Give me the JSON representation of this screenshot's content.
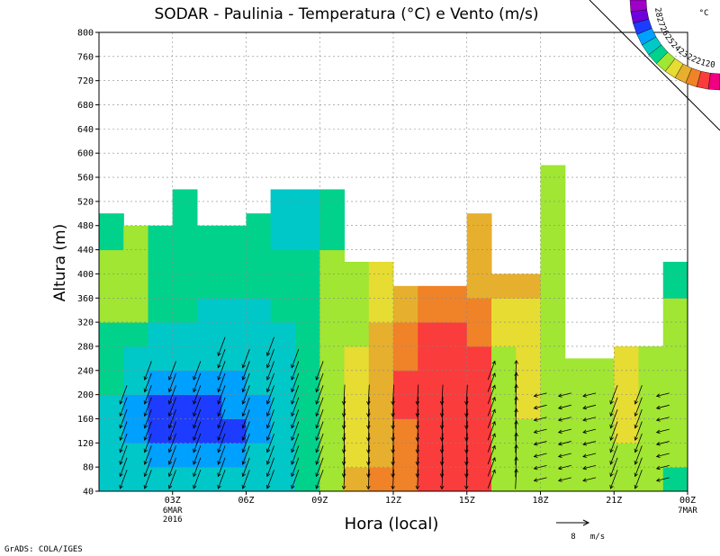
{
  "chart_data": {
    "type": "heatmap",
    "title": "SODAR - Paulinia - Temperatura (°C) e Vento (m/s)",
    "xlabel": "Hora (local)",
    "ylabel": "Altura (m)",
    "ylim": [
      40,
      800
    ],
    "y_ticks": [
      40,
      80,
      120,
      160,
      200,
      240,
      280,
      320,
      360,
      400,
      440,
      480,
      520,
      560,
      600,
      640,
      680,
      720,
      760,
      800
    ],
    "x_hours": [
      0,
      1,
      2,
      3,
      4,
      5,
      6,
      7,
      8,
      9,
      10,
      11,
      12,
      13,
      14,
      15,
      16,
      17,
      18,
      19,
      20,
      21,
      22,
      23
    ],
    "x_ticks": [
      {
        "hour": 3,
        "label": "03Z",
        "sub1": "6MAR",
        "sub2": "2016"
      },
      {
        "hour": 6,
        "label": "06Z"
      },
      {
        "hour": 9,
        "label": "09Z"
      },
      {
        "hour": 12,
        "label": "12Z"
      },
      {
        "hour": 15,
        "label": "15Z"
      },
      {
        "hour": 18,
        "label": "18Z"
      },
      {
        "hour": 21,
        "label": "21Z"
      },
      {
        "hour": 24,
        "label": "00Z",
        "sub1": "7MAR"
      }
    ],
    "levels": [
      20,
      21,
      22,
      23,
      24,
      25,
      26,
      27,
      28
    ],
    "level_colors": [
      "#a000c8",
      "#6e00dc",
      "#1e3cff",
      "#00a0ff",
      "#00c8c8",
      "#00d28c",
      "#a0e632",
      "#e6dc32",
      "#e6af2d",
      "#f08228",
      "#fa3c3c",
      "#f00082"
    ],
    "colorbar_labels": [
      "28",
      "27",
      "26",
      "25",
      "24",
      "23",
      "22",
      "21",
      "20"
    ],
    "colorbar_unit": "°C",
    "top_height_m": [
      500,
      480,
      480,
      540,
      480,
      480,
      500,
      540,
      540,
      540,
      420,
      420,
      380,
      380,
      380,
      500,
      400,
      400,
      580,
      260,
      260,
      280,
      280,
      420
    ],
    "temperature_columns": [
      [
        22,
        22,
        22,
        22,
        23,
        23,
        23,
        24,
        24,
        24,
        23
      ],
      [
        22,
        22,
        21,
        21,
        22,
        22,
        23,
        24,
        24,
        24,
        24
      ],
      [
        22,
        21,
        20,
        20,
        21,
        22,
        22,
        23,
        23,
        23,
        23
      ],
      [
        22,
        21,
        20,
        20,
        21,
        22,
        22,
        23,
        23,
        23,
        23
      ],
      [
        22,
        21,
        20,
        20,
        21,
        22,
        22,
        22,
        23,
        23,
        23
      ],
      [
        22,
        21,
        20,
        21,
        21,
        22,
        22,
        22,
        23,
        23,
        23
      ],
      [
        22,
        22,
        21,
        21,
        22,
        22,
        22,
        22,
        23,
        23,
        23
      ],
      [
        22,
        22,
        22,
        22,
        22,
        22,
        22,
        23,
        23,
        23,
        22
      ],
      [
        23,
        23,
        23,
        23,
        23,
        23,
        23,
        23,
        23,
        23,
        22
      ],
      [
        24,
        24,
        24,
        24,
        24,
        24,
        24,
        24,
        24,
        24,
        23
      ],
      [
        26,
        25,
        25,
        25,
        25,
        25,
        24,
        24,
        24,
        24,
        24
      ],
      [
        27,
        26,
        26,
        26,
        26,
        26,
        26,
        25,
        25,
        25,
        25
      ],
      [
        27,
        27,
        27,
        28,
        28,
        27,
        27,
        26,
        26,
        26,
        26
      ],
      [
        28,
        28,
        28,
        28,
        28,
        28,
        28,
        27,
        27,
        27,
        26
      ],
      [
        28,
        28,
        28,
        28,
        28,
        28,
        28,
        27,
        27,
        27,
        27
      ],
      [
        28,
        28,
        28,
        28,
        28,
        28,
        27,
        27,
        26,
        26,
        26
      ],
      [
        24,
        24,
        24,
        24,
        24,
        24,
        25,
        25,
        26,
        26,
        26
      ],
      [
        24,
        24,
        24,
        25,
        25,
        25,
        25,
        25,
        26,
        26,
        26
      ],
      [
        24,
        24,
        24,
        24,
        24,
        24,
        24,
        24,
        24,
        24,
        24
      ],
      [
        24,
        24,
        24,
        24,
        24,
        24,
        24,
        24,
        24,
        24,
        24
      ],
      [
        24,
        24,
        24,
        24,
        24,
        24,
        24,
        24,
        24,
        24,
        24
      ],
      [
        24,
        24,
        25,
        25,
        25,
        25,
        24,
        24,
        24,
        24,
        24
      ],
      [
        24,
        24,
        24,
        24,
        24,
        24,
        24,
        24,
        24,
        24,
        24
      ],
      [
        23,
        24,
        24,
        24,
        24,
        24,
        24,
        24,
        23,
        23,
        23
      ]
    ],
    "wind_columns": [
      {
        "hour": 1,
        "top": 200,
        "dir": "SW"
      },
      {
        "hour": 2,
        "top": 240,
        "dir": "SW"
      },
      {
        "hour": 3,
        "top": 240,
        "dir": "SW"
      },
      {
        "hour": 4,
        "top": 240,
        "dir": "SW"
      },
      {
        "hour": 5,
        "top": 280,
        "dir": "SW"
      },
      {
        "hour": 6,
        "top": 260,
        "dir": "SW"
      },
      {
        "hour": 7,
        "top": 280,
        "dir": "SW"
      },
      {
        "hour": 8,
        "top": 260,
        "dir": "SW"
      },
      {
        "hour": 9,
        "top": 240,
        "dir": "SW"
      },
      {
        "hour": 10,
        "top": 200,
        "dir": "S"
      },
      {
        "hour": 11,
        "top": 200,
        "dir": "S"
      },
      {
        "hour": 12,
        "top": 200,
        "dir": "S"
      },
      {
        "hour": 13,
        "top": 200,
        "dir": "S"
      },
      {
        "hour": 14,
        "top": 200,
        "dir": "S"
      },
      {
        "hour": 15,
        "top": 200,
        "dir": "S"
      },
      {
        "hour": 16,
        "top": 240,
        "dir": "NE"
      },
      {
        "hour": 17,
        "top": 240,
        "dir": "N"
      },
      {
        "hour": 18,
        "top": 200,
        "dir": "W"
      },
      {
        "hour": 19,
        "top": 200,
        "dir": "W"
      },
      {
        "hour": 20,
        "top": 200,
        "dir": "W"
      },
      {
        "hour": 21,
        "top": 200,
        "dir": "SW"
      },
      {
        "hour": 22,
        "top": 200,
        "dir": "SW"
      },
      {
        "hour": 23,
        "top": 200,
        "dir": "W"
      }
    ],
    "reference_vector": {
      "value": "8",
      "unit": "m/s"
    },
    "credit": "GrADS: COLA/IGES"
  }
}
